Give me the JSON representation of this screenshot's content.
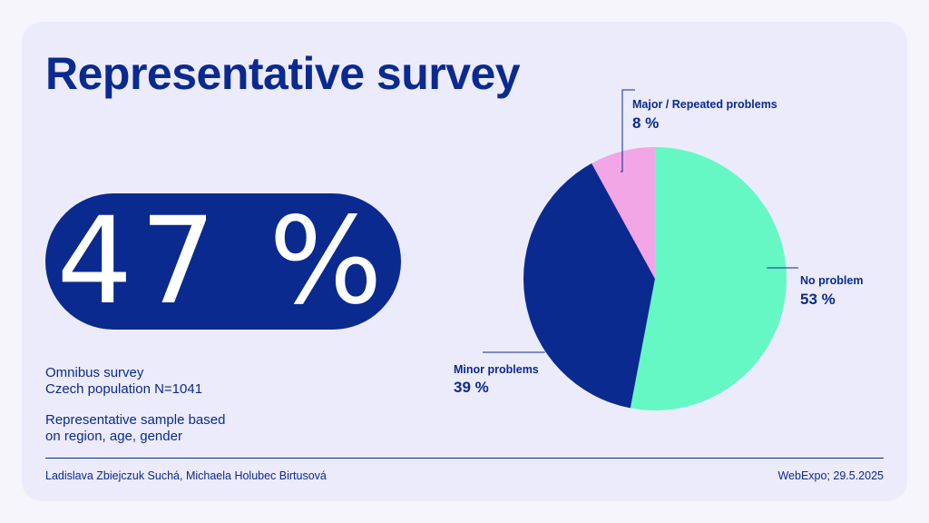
{
  "title": "Representative survey",
  "headline": "47 %",
  "survey_info": {
    "line1": "Omnibus survey",
    "line2": "Czech population N=1041",
    "line3": "Representative sample based",
    "line4": "on region, age, gender"
  },
  "footer": {
    "authors": "Ladislava Zbiejczuk Suchá, Michaela Holubec Birtusová",
    "event": "WebExpo; 29.5.2025"
  },
  "colors": {
    "navy": "#0b2a8f",
    "mint": "#66f8c4",
    "pink": "#f3a6e6"
  },
  "chart_data": {
    "type": "pie",
    "slices": [
      {
        "label": "No problem",
        "value": 53,
        "value_label": "53 %",
        "color": "#66f8c4"
      },
      {
        "label": "Minor problems",
        "value": 39,
        "value_label": "39 %",
        "color": "#0b2a8f"
      },
      {
        "label": "Major / Repeated problems",
        "value": 8,
        "value_label": "8 %",
        "color": "#f3a6e6"
      }
    ]
  }
}
